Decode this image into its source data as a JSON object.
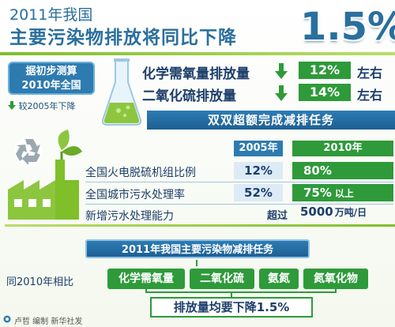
{
  "header": {
    "year_line": "2011年我国",
    "main_title": "主要污染物排放将同比下降",
    "big_percent": "1.5%"
  },
  "estimate": {
    "line1": "据初步测算",
    "line2": "2010年全国",
    "compare_note": "较2005年下降"
  },
  "pollutants": [
    {
      "label": "化学需氧量排放量",
      "percent": "12%",
      "suffix": "左右"
    },
    {
      "label": "二氧化硫排放量",
      "percent": "14%",
      "suffix": "左右"
    }
  ],
  "banner1": "双双超额完成减排任务",
  "table": {
    "col_2005": "2005年",
    "col_2010": "2010年",
    "rows": [
      {
        "label": "全国火电脱硫机组比例",
        "v2005": "12%",
        "v2010": "80%",
        "extra": ""
      },
      {
        "label": "全国城市污水处理率",
        "v2005": "52%",
        "v2010": "75%",
        "extra": "以上"
      }
    ],
    "capacity_label": "新增污水处理能力",
    "capacity_prefix": "超过",
    "capacity_value": "5000",
    "capacity_unit": "万吨/日"
  },
  "banner2": "2011年我国主要污染物减排任务",
  "compare_2010": "同2010年相比",
  "pollutant_tags": [
    "化学需氧量",
    "二氧化硫",
    "氨氮",
    "氮氧化物"
  ],
  "summary": "排放量均要下降1.5%",
  "credit": "卢哲 编制 新华社发",
  "colors": {
    "blue": "#2e7bb0",
    "green": "#2e9a3a",
    "dark_text": "#1c3e6a"
  }
}
